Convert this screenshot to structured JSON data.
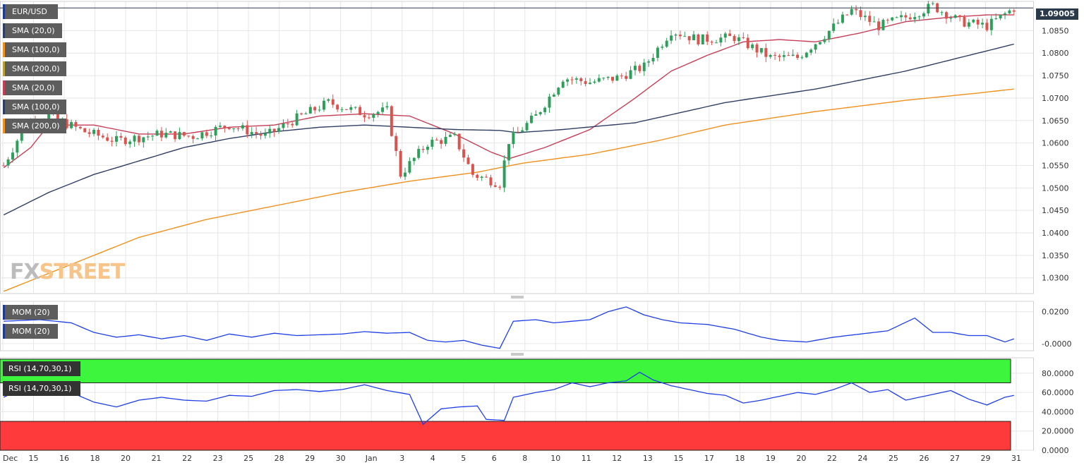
{
  "labels": {
    "symbol": "EUR/USD",
    "price_overlays": [
      "SMA (20,0)",
      "SMA (100,0)",
      "SMA (200,0)",
      "SMA (20,0)",
      "SMA (100,0)",
      "SMA (200,0)"
    ],
    "mom": [
      "MOM (20)",
      "MOM (20)"
    ],
    "rsi": [
      "RSI (14,70,30,1)",
      "RSI (14,70,30,1)"
    ],
    "current_price": "1.09005",
    "logo_fx": "FX",
    "logo_street": "STREET"
  },
  "colors": {
    "bull": "#2e9e5b",
    "bear": "#d9534f",
    "sma20": "#c43f57",
    "sma100": "#2f3e63",
    "sma200": "#f0901e",
    "mom_line": "#1e3ee8",
    "rsi_line": "#1e3ee8",
    "overbought_zone": "#3cf53c",
    "oversold_zone": "#ff3a3a",
    "grid": "#e6e6e6"
  },
  "chart_data": [
    {
      "type": "candlestick",
      "title": "EUR/USD",
      "ylim": [
        1.0265,
        1.0915
      ],
      "y_ticks": [
        "1.0850",
        "1.0800",
        "1.0750",
        "1.0700",
        "1.0650",
        "1.0600",
        "1.0550",
        "1.0500",
        "1.0450",
        "1.0400",
        "1.0350",
        "1.0300"
      ],
      "x_labels": [
        "Dec",
        "15",
        "16",
        "18",
        "20",
        "21",
        "22",
        "23",
        "25",
        "28",
        "29",
        "30",
        "Jan",
        "3",
        "4",
        "5",
        "6",
        "8",
        "10",
        "11",
        "12",
        "13",
        "15",
        "17",
        "18",
        "19",
        "20",
        "22",
        "24",
        "25",
        "26",
        "27",
        "29",
        "31"
      ],
      "close_path": [
        [
          0,
          1.055
        ],
        [
          5,
          1.0645
        ],
        [
          10,
          1.066
        ],
        [
          18,
          1.0625
        ],
        [
          25,
          1.0605
        ],
        [
          35,
          1.062
        ],
        [
          42,
          1.0615
        ],
        [
          50,
          1.064
        ],
        [
          58,
          1.0615
        ],
        [
          65,
          1.0655
        ],
        [
          72,
          1.069
        ],
        [
          80,
          1.0665
        ],
        [
          85,
          1.0672
        ],
        [
          88,
          1.053
        ],
        [
          94,
          1.06
        ],
        [
          100,
          1.0612
        ],
        [
          104,
          1.053
        ],
        [
          110,
          1.051
        ],
        [
          112,
          1.0605
        ],
        [
          118,
          1.066
        ],
        [
          124,
          1.0745
        ],
        [
          130,
          1.0735
        ],
        [
          136,
          1.0745
        ],
        [
          142,
          1.077
        ],
        [
          148,
          1.085
        ],
        [
          154,
          1.083
        ],
        [
          162,
          1.0835
        ],
        [
          170,
          1.079
        ],
        [
          176,
          1.079
        ],
        [
          182,
          1.084
        ],
        [
          188,
          1.0895
        ],
        [
          194,
          1.086
        ],
        [
          200,
          1.088
        ],
        [
          206,
          1.0905
        ],
        [
          212,
          1.087
        ],
        [
          218,
          1.086
        ],
        [
          224,
          1.09
        ]
      ],
      "sma": [
        {
          "name": "SMA (20,0)",
          "points": [
            [
              0,
              1.0545
            ],
            [
              6,
              1.059
            ],
            [
              10,
              1.064
            ],
            [
              20,
              1.064
            ],
            [
              30,
              1.062
            ],
            [
              40,
              1.062
            ],
            [
              50,
              1.0635
            ],
            [
              60,
              1.064
            ],
            [
              70,
              1.066
            ],
            [
              80,
              1.0665
            ],
            [
              90,
              1.066
            ],
            [
              100,
              1.062
            ],
            [
              108,
              1.058
            ],
            [
              112,
              1.0565
            ],
            [
              120,
              1.059
            ],
            [
              130,
              1.063
            ],
            [
              140,
              1.07
            ],
            [
              148,
              1.076
            ],
            [
              156,
              1.0795
            ],
            [
              164,
              1.0825
            ],
            [
              172,
              1.083
            ],
            [
              180,
              1.0825
            ],
            [
              190,
              1.0845
            ],
            [
              200,
              1.087
            ],
            [
              210,
              1.088
            ],
            [
              218,
              1.0885
            ],
            [
              224,
              1.0885
            ]
          ]
        },
        {
          "name": "SMA (100,0)",
          "points": [
            [
              0,
              1.044
            ],
            [
              10,
              1.049
            ],
            [
              20,
              1.053
            ],
            [
              30,
              1.056
            ],
            [
              40,
              1.059
            ],
            [
              50,
              1.061
            ],
            [
              60,
              1.0625
            ],
            [
              70,
              1.0635
            ],
            [
              80,
              1.064
            ],
            [
              90,
              1.0635
            ],
            [
              100,
              1.063
            ],
            [
              110,
              1.0628
            ],
            [
              114,
              1.0623
            ],
            [
              124,
              1.063
            ],
            [
              140,
              1.0645
            ],
            [
              160,
              1.069
            ],
            [
              180,
              1.072
            ],
            [
              200,
              1.076
            ],
            [
              212,
              1.079
            ],
            [
              224,
              1.082
            ]
          ]
        },
        {
          "name": "SMA (200,0)",
          "points": [
            [
              0,
              1.027
            ],
            [
              15,
              1.033
            ],
            [
              30,
              1.039
            ],
            [
              45,
              1.043
            ],
            [
              60,
              1.046
            ],
            [
              75,
              1.049
            ],
            [
              90,
              1.0515
            ],
            [
              105,
              1.0535
            ],
            [
              115,
              1.0555
            ],
            [
              130,
              1.0575
            ],
            [
              145,
              1.0605
            ],
            [
              160,
              1.064
            ],
            [
              180,
              1.067
            ],
            [
              200,
              1.0695
            ],
            [
              215,
              1.071
            ],
            [
              224,
              1.072
            ]
          ]
        }
      ]
    },
    {
      "type": "line",
      "title": "MOM (20)",
      "ylim": [
        -0.0045,
        0.0265
      ],
      "y_ticks": [
        "0.0200",
        "-0.0000"
      ],
      "points": [
        [
          0,
          0.014
        ],
        [
          8,
          0.015
        ],
        [
          15,
          0.013
        ],
        [
          20,
          0.007
        ],
        [
          25,
          0.004
        ],
        [
          30,
          0.0055
        ],
        [
          35,
          0.003
        ],
        [
          40,
          0.005
        ],
        [
          45,
          0.002
        ],
        [
          50,
          0.006
        ],
        [
          55,
          0.004
        ],
        [
          60,
          0.0065
        ],
        [
          65,
          0.005
        ],
        [
          70,
          0.0055
        ],
        [
          75,
          0.006
        ],
        [
          80,
          0.0075
        ],
        [
          85,
          0.0065
        ],
        [
          90,
          0.007
        ],
        [
          94,
          0.002
        ],
        [
          98,
          0.001
        ],
        [
          102,
          0.002
        ],
        [
          106,
          -0.001
        ],
        [
          110,
          -0.003
        ],
        [
          113,
          0.014
        ],
        [
          118,
          0.015
        ],
        [
          122,
          0.013
        ],
        [
          126,
          0.014
        ],
        [
          130,
          0.015
        ],
        [
          134,
          0.02
        ],
        [
          138,
          0.023
        ],
        [
          142,
          0.018
        ],
        [
          146,
          0.015
        ],
        [
          150,
          0.013
        ],
        [
          156,
          0.012
        ],
        [
          162,
          0.009
        ],
        [
          168,
          0.004
        ],
        [
          172,
          0.002
        ],
        [
          178,
          0.001
        ],
        [
          184,
          0.004
        ],
        [
          190,
          0.006
        ],
        [
          196,
          0.008
        ],
        [
          202,
          0.016
        ],
        [
          206,
          0.007
        ],
        [
          210,
          0.007
        ],
        [
          214,
          0.005
        ],
        [
          218,
          0.005
        ],
        [
          222,
          0.001
        ],
        [
          224,
          0.003
        ]
      ]
    },
    {
      "type": "line",
      "title": "RSI (14,70,30,1)",
      "ylim": [
        0,
        96
      ],
      "y_ticks": [
        "80.0000",
        "60.0000",
        "40.0000",
        "20.0000",
        "0.0000"
      ],
      "zones": {
        "overbought": 70,
        "oversold": 30
      },
      "points": [
        [
          0,
          55
        ],
        [
          5,
          66
        ],
        [
          10,
          63
        ],
        [
          15,
          60
        ],
        [
          20,
          50
        ],
        [
          25,
          45
        ],
        [
          30,
          52
        ],
        [
          35,
          55
        ],
        [
          40,
          52
        ],
        [
          45,
          51
        ],
        [
          50,
          57
        ],
        [
          55,
          56
        ],
        [
          60,
          62
        ],
        [
          65,
          63
        ],
        [
          70,
          61
        ],
        [
          75,
          63
        ],
        [
          80,
          68
        ],
        [
          85,
          62
        ],
        [
          90,
          58
        ],
        [
          93,
          27
        ],
        [
          97,
          43
        ],
        [
          101,
          45
        ],
        [
          105,
          46
        ],
        [
          107,
          32
        ],
        [
          111,
          31
        ],
        [
          113,
          55
        ],
        [
          118,
          60
        ],
        [
          122,
          63
        ],
        [
          126,
          70
        ],
        [
          130,
          66
        ],
        [
          134,
          70
        ],
        [
          138,
          72
        ],
        [
          141,
          81
        ],
        [
          144,
          73
        ],
        [
          148,
          67
        ],
        [
          152,
          63
        ],
        [
          156,
          59
        ],
        [
          160,
          57
        ],
        [
          164,
          49
        ],
        [
          168,
          52
        ],
        [
          172,
          56
        ],
        [
          176,
          60
        ],
        [
          180,
          58
        ],
        [
          184,
          63
        ],
        [
          188,
          70
        ],
        [
          192,
          60
        ],
        [
          196,
          63
        ],
        [
          200,
          52
        ],
        [
          205,
          57
        ],
        [
          210,
          62
        ],
        [
          214,
          53
        ],
        [
          218,
          47
        ],
        [
          222,
          55
        ],
        [
          224,
          57
        ]
      ]
    }
  ]
}
